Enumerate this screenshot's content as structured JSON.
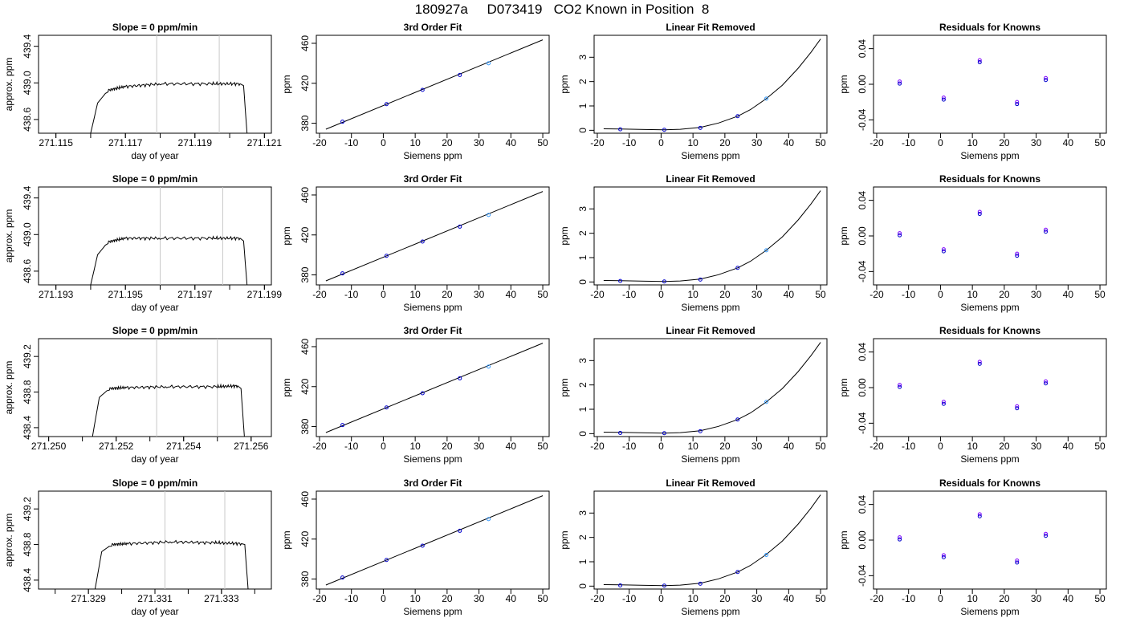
{
  "title": "180927a     D073419   CO2 Known in Position  8",
  "colors": {
    "axis": "#000000",
    "trace": "#000000",
    "vline": "#c8c8c8",
    "point_dark": "#0000cc",
    "point_red": "#ff0000",
    "point_light": "#3399ff",
    "point_purple": "#7f00ff"
  },
  "chart_data": [
    {
      "type": "line",
      "title": "Slope =  0  ppm/min",
      "xlabel": "day of year",
      "ylabel": "approx. ppm",
      "xlim": [
        271.1145,
        271.1212
      ],
      "ylim": [
        438.45,
        439.52
      ],
      "xticks": [
        "271.115",
        "271.117",
        "271.119",
        "271.121"
      ],
      "yticks": [
        "438.6",
        "439.0",
        "439.4"
      ],
      "vlines": [
        271.1179,
        271.1197
      ],
      "x": [
        271.116,
        271.1162,
        271.1165,
        271.117,
        271.118,
        271.1195,
        271.1203,
        271.1204,
        271.1205
      ],
      "y": [
        438.45,
        438.78,
        438.92,
        438.96,
        438.99,
        438.99,
        438.99,
        438.97,
        438.45
      ]
    },
    {
      "type": "scatter",
      "title": "3rd Order Fit",
      "xlabel": "Siemens ppm",
      "ylabel": "ppm",
      "xlim": [
        -21,
        52
      ],
      "ylim": [
        370,
        468
      ],
      "xticks": [
        "-20",
        "-10",
        "0",
        "10",
        "20",
        "30",
        "40",
        "50"
      ],
      "yticks": [
        "380",
        "420",
        "460"
      ],
      "x": [
        -12.8,
        1.0,
        12.3,
        24.0,
        33.0
      ],
      "y": [
        381.5,
        399.1,
        413.4,
        428.3,
        440.0
      ],
      "fit_x": [
        -18,
        50
      ],
      "fit_y": [
        374.0,
        463.5
      ]
    },
    {
      "type": "scatter",
      "title": "Linear Fit Removed",
      "xlabel": "Siemens ppm",
      "ylabel": "ppm",
      "xlim": [
        -21,
        52
      ],
      "ylim": [
        -0.12,
        3.9
      ],
      "xticks": [
        "-20",
        "-10",
        "0",
        "10",
        "20",
        "30",
        "40",
        "50"
      ],
      "yticks": [
        "0",
        "1",
        "2",
        "3"
      ],
      "x": [
        -12.8,
        1.0,
        12.3,
        24.0,
        33.0
      ],
      "y": [
        0.04,
        0.02,
        0.1,
        0.58,
        1.3
      ],
      "curve_x": [
        -18,
        -12.8,
        -5,
        1,
        6,
        12.3,
        18,
        24,
        28,
        33,
        38,
        43,
        47,
        50
      ],
      "curve_y": [
        0.06,
        0.05,
        0.03,
        0.02,
        0.04,
        0.12,
        0.3,
        0.58,
        0.85,
        1.3,
        1.85,
        2.55,
        3.2,
        3.75
      ]
    },
    {
      "type": "scatter",
      "title": "Residuals for Knowns",
      "xlabel": "Siemens ppm",
      "ylabel": "ppm",
      "xlim": [
        -21,
        52
      ],
      "ylim": [
        -0.055,
        0.055
      ],
      "xticks": [
        "-20",
        "-10",
        "0",
        "10",
        "20",
        "30",
        "40",
        "50"
      ],
      "yticks": [
        "-0.04",
        "0.00",
        "0.04"
      ],
      "x": [
        -12.8,
        1.0,
        12.3,
        24.0,
        33.0
      ],
      "y": [
        0.003,
        -0.015,
        0.027,
        -0.02,
        0.007
      ]
    },
    {
      "type": "line",
      "title": "Slope =  0  ppm/min",
      "xlabel": "day of year",
      "ylabel": "approx. ppm",
      "xlim": [
        271.1925,
        271.1992
      ],
      "ylim": [
        438.45,
        439.52
      ],
      "xticks": [
        "271.193",
        "271.195",
        "271.197",
        "271.199"
      ],
      "yticks": [
        "438.6",
        "439.0",
        "439.4"
      ],
      "vlines": [
        271.196,
        271.1978
      ],
      "x": [
        271.194,
        271.1942,
        271.1945,
        271.195,
        271.196,
        271.1975,
        271.1983,
        271.1984,
        271.1985
      ],
      "y": [
        438.45,
        438.78,
        438.92,
        438.96,
        438.96,
        438.96,
        438.96,
        438.93,
        438.45
      ]
    },
    {
      "type": "scatter",
      "title": "3rd Order Fit",
      "xlabel": "Siemens ppm",
      "ylabel": "ppm",
      "xlim": [
        -21,
        52
      ],
      "ylim": [
        370,
        468
      ],
      "xticks": [
        "-20",
        "-10",
        "0",
        "10",
        "20",
        "30",
        "40",
        "50"
      ],
      "yticks": [
        "380",
        "420",
        "460"
      ],
      "x": [
        -12.8,
        1.0,
        12.3,
        24.0,
        33.0
      ],
      "y": [
        381.5,
        399.1,
        413.4,
        428.3,
        440.0
      ],
      "fit_x": [
        -18,
        50
      ],
      "fit_y": [
        374.0,
        463.5
      ]
    },
    {
      "type": "scatter",
      "title": "Linear Fit Removed",
      "xlabel": "Siemens ppm",
      "ylabel": "ppm",
      "xlim": [
        -21,
        52
      ],
      "ylim": [
        -0.12,
        3.9
      ],
      "xticks": [
        "-20",
        "-10",
        "0",
        "10",
        "20",
        "30",
        "40",
        "50"
      ],
      "yticks": [
        "0",
        "1",
        "2",
        "3"
      ],
      "x": [
        -12.8,
        1.0,
        12.3,
        24.0,
        33.0
      ],
      "y": [
        0.04,
        0.02,
        0.1,
        0.58,
        1.3
      ],
      "curve_x": [
        -18,
        -12.8,
        -5,
        1,
        6,
        12.3,
        18,
        24,
        28,
        33,
        38,
        43,
        47,
        50
      ],
      "curve_y": [
        0.06,
        0.05,
        0.03,
        0.02,
        0.04,
        0.12,
        0.3,
        0.58,
        0.85,
        1.3,
        1.85,
        2.55,
        3.2,
        3.75
      ]
    },
    {
      "type": "scatter",
      "title": "Residuals for Knowns",
      "xlabel": "Siemens ppm",
      "ylabel": "ppm",
      "xlim": [
        -21,
        52
      ],
      "ylim": [
        -0.055,
        0.055
      ],
      "xticks": [
        "-20",
        "-10",
        "0",
        "10",
        "20",
        "30",
        "40",
        "50"
      ],
      "yticks": [
        "-0.04",
        "0.00",
        "0.04"
      ],
      "x": [
        -12.8,
        1.0,
        12.3,
        24.0,
        33.0
      ],
      "y": [
        0.003,
        -0.015,
        0.027,
        -0.02,
        0.007
      ]
    },
    {
      "type": "line",
      "title": "Slope =  0  ppm/min",
      "xlabel": "day of year",
      "ylabel": "approx. ppm",
      "xlim": [
        271.2497,
        271.2566
      ],
      "ylim": [
        438.3,
        439.4
      ],
      "xticks": [
        "271.250",
        "271.252",
        "271.254",
        "271.256"
      ],
      "yticks": [
        "438.4",
        "438.8",
        "439.2"
      ],
      "vlines": [
        271.2532,
        271.255
      ],
      "x": [
        271.2513,
        271.2515,
        271.2518,
        271.2523,
        271.2535,
        271.255,
        271.2556,
        271.2557,
        271.2558
      ],
      "y": [
        438.3,
        438.74,
        438.84,
        438.85,
        438.86,
        438.86,
        438.87,
        438.84,
        438.3
      ]
    },
    {
      "type": "scatter",
      "title": "3rd Order Fit",
      "xlabel": "Siemens ppm",
      "ylabel": "ppm",
      "xlim": [
        -21,
        52
      ],
      "ylim": [
        370,
        468
      ],
      "xticks": [
        "-20",
        "-10",
        "0",
        "10",
        "20",
        "30",
        "40",
        "50"
      ],
      "yticks": [
        "380",
        "420",
        "460"
      ],
      "x": [
        -12.8,
        1.0,
        12.3,
        24.0,
        33.0
      ],
      "y": [
        381.5,
        399.1,
        413.4,
        428.3,
        440.0
      ],
      "fit_x": [
        -18,
        50
      ],
      "fit_y": [
        374.0,
        463.5
      ]
    },
    {
      "type": "scatter",
      "title": "Linear Fit Removed",
      "xlabel": "Siemens ppm",
      "ylabel": "ppm",
      "xlim": [
        -21,
        52
      ],
      "ylim": [
        -0.12,
        3.9
      ],
      "xticks": [
        "-20",
        "-10",
        "0",
        "10",
        "20",
        "30",
        "40",
        "50"
      ],
      "yticks": [
        "0",
        "1",
        "2",
        "3"
      ],
      "x": [
        -12.8,
        1.0,
        12.3,
        24.0,
        33.0
      ],
      "y": [
        0.03,
        0.02,
        0.1,
        0.58,
        1.3
      ],
      "curve_x": [
        -18,
        -12.8,
        -5,
        1,
        6,
        12.3,
        18,
        24,
        28,
        33,
        38,
        43,
        47,
        50
      ],
      "curve_y": [
        0.06,
        0.05,
        0.03,
        0.02,
        0.04,
        0.12,
        0.3,
        0.58,
        0.85,
        1.3,
        1.85,
        2.55,
        3.2,
        3.75
      ]
    },
    {
      "type": "scatter",
      "title": "Residuals for Knowns",
      "xlabel": "Siemens ppm",
      "ylabel": "ppm",
      "xlim": [
        -21,
        52
      ],
      "ylim": [
        -0.055,
        0.055
      ],
      "xticks": [
        "-20",
        "-10",
        "0",
        "10",
        "20",
        "30",
        "40",
        "50"
      ],
      "yticks": [
        "-0.04",
        "0.00",
        "0.04"
      ],
      "x": [
        -12.8,
        1.0,
        12.3,
        24.0,
        33.0
      ],
      "y": [
        0.003,
        -0.016,
        0.029,
        -0.021,
        0.007
      ]
    },
    {
      "type": "line",
      "title": "Slope =  0  ppm/min",
      "xlabel": "day of year",
      "ylabel": "approx. ppm",
      "xlim": [
        271.3275,
        271.3345
      ],
      "ylim": [
        438.3,
        439.4
      ],
      "xticks": [
        "271.329",
        "271.331",
        "271.333"
      ],
      "yticks": [
        "438.4",
        "438.8",
        "439.2"
      ],
      "vlines": [
        271.3313,
        271.3331
      ],
      "x": [
        271.3292,
        271.3294,
        271.3297,
        271.3302,
        271.3315,
        271.3328,
        271.3336,
        271.3337,
        271.3338
      ],
      "y": [
        438.3,
        438.72,
        438.8,
        438.81,
        438.83,
        438.82,
        438.81,
        438.8,
        438.3
      ]
    },
    {
      "type": "scatter",
      "title": "3rd Order Fit",
      "xlabel": "Siemens ppm",
      "ylabel": "ppm",
      "xlim": [
        -21,
        52
      ],
      "ylim": [
        370,
        468
      ],
      "xticks": [
        "-20",
        "-10",
        "0",
        "10",
        "20",
        "30",
        "40",
        "50"
      ],
      "yticks": [
        "380",
        "420",
        "460"
      ],
      "x": [
        -12.8,
        1.0,
        12.3,
        24.0,
        33.0
      ],
      "y": [
        381.5,
        399.1,
        413.4,
        428.3,
        440.0
      ],
      "fit_x": [
        -18,
        50
      ],
      "fit_y": [
        374.0,
        463.5
      ]
    },
    {
      "type": "scatter",
      "title": "Linear Fit Removed",
      "xlabel": "Siemens ppm",
      "ylabel": "ppm",
      "xlim": [
        -21,
        52
      ],
      "ylim": [
        -0.12,
        3.9
      ],
      "xticks": [
        "-20",
        "-10",
        "0",
        "10",
        "20",
        "30",
        "40",
        "50"
      ],
      "yticks": [
        "0",
        "1",
        "2",
        "3"
      ],
      "x": [
        -12.8,
        1.0,
        12.3,
        24.0,
        33.0
      ],
      "y": [
        0.03,
        0.02,
        0.1,
        0.58,
        1.28
      ],
      "curve_x": [
        -18,
        -12.8,
        -5,
        1,
        6,
        12.3,
        18,
        24,
        28,
        33,
        38,
        43,
        47,
        50
      ],
      "curve_y": [
        0.06,
        0.05,
        0.03,
        0.02,
        0.04,
        0.12,
        0.3,
        0.58,
        0.85,
        1.3,
        1.85,
        2.55,
        3.2,
        3.75
      ]
    },
    {
      "type": "scatter",
      "title": "Residuals for Knowns",
      "xlabel": "Siemens ppm",
      "ylabel": "ppm",
      "xlim": [
        -21,
        52
      ],
      "ylim": [
        -0.055,
        0.055
      ],
      "xticks": [
        "-20",
        "-10",
        "0",
        "10",
        "20",
        "30",
        "40",
        "50"
      ],
      "yticks": [
        "-0.04",
        "0.00",
        "0.04"
      ],
      "x": [
        -12.8,
        1.0,
        12.3,
        24.0,
        33.0
      ],
      "y": [
        0.003,
        -0.017,
        0.029,
        -0.023,
        0.007
      ]
    }
  ]
}
